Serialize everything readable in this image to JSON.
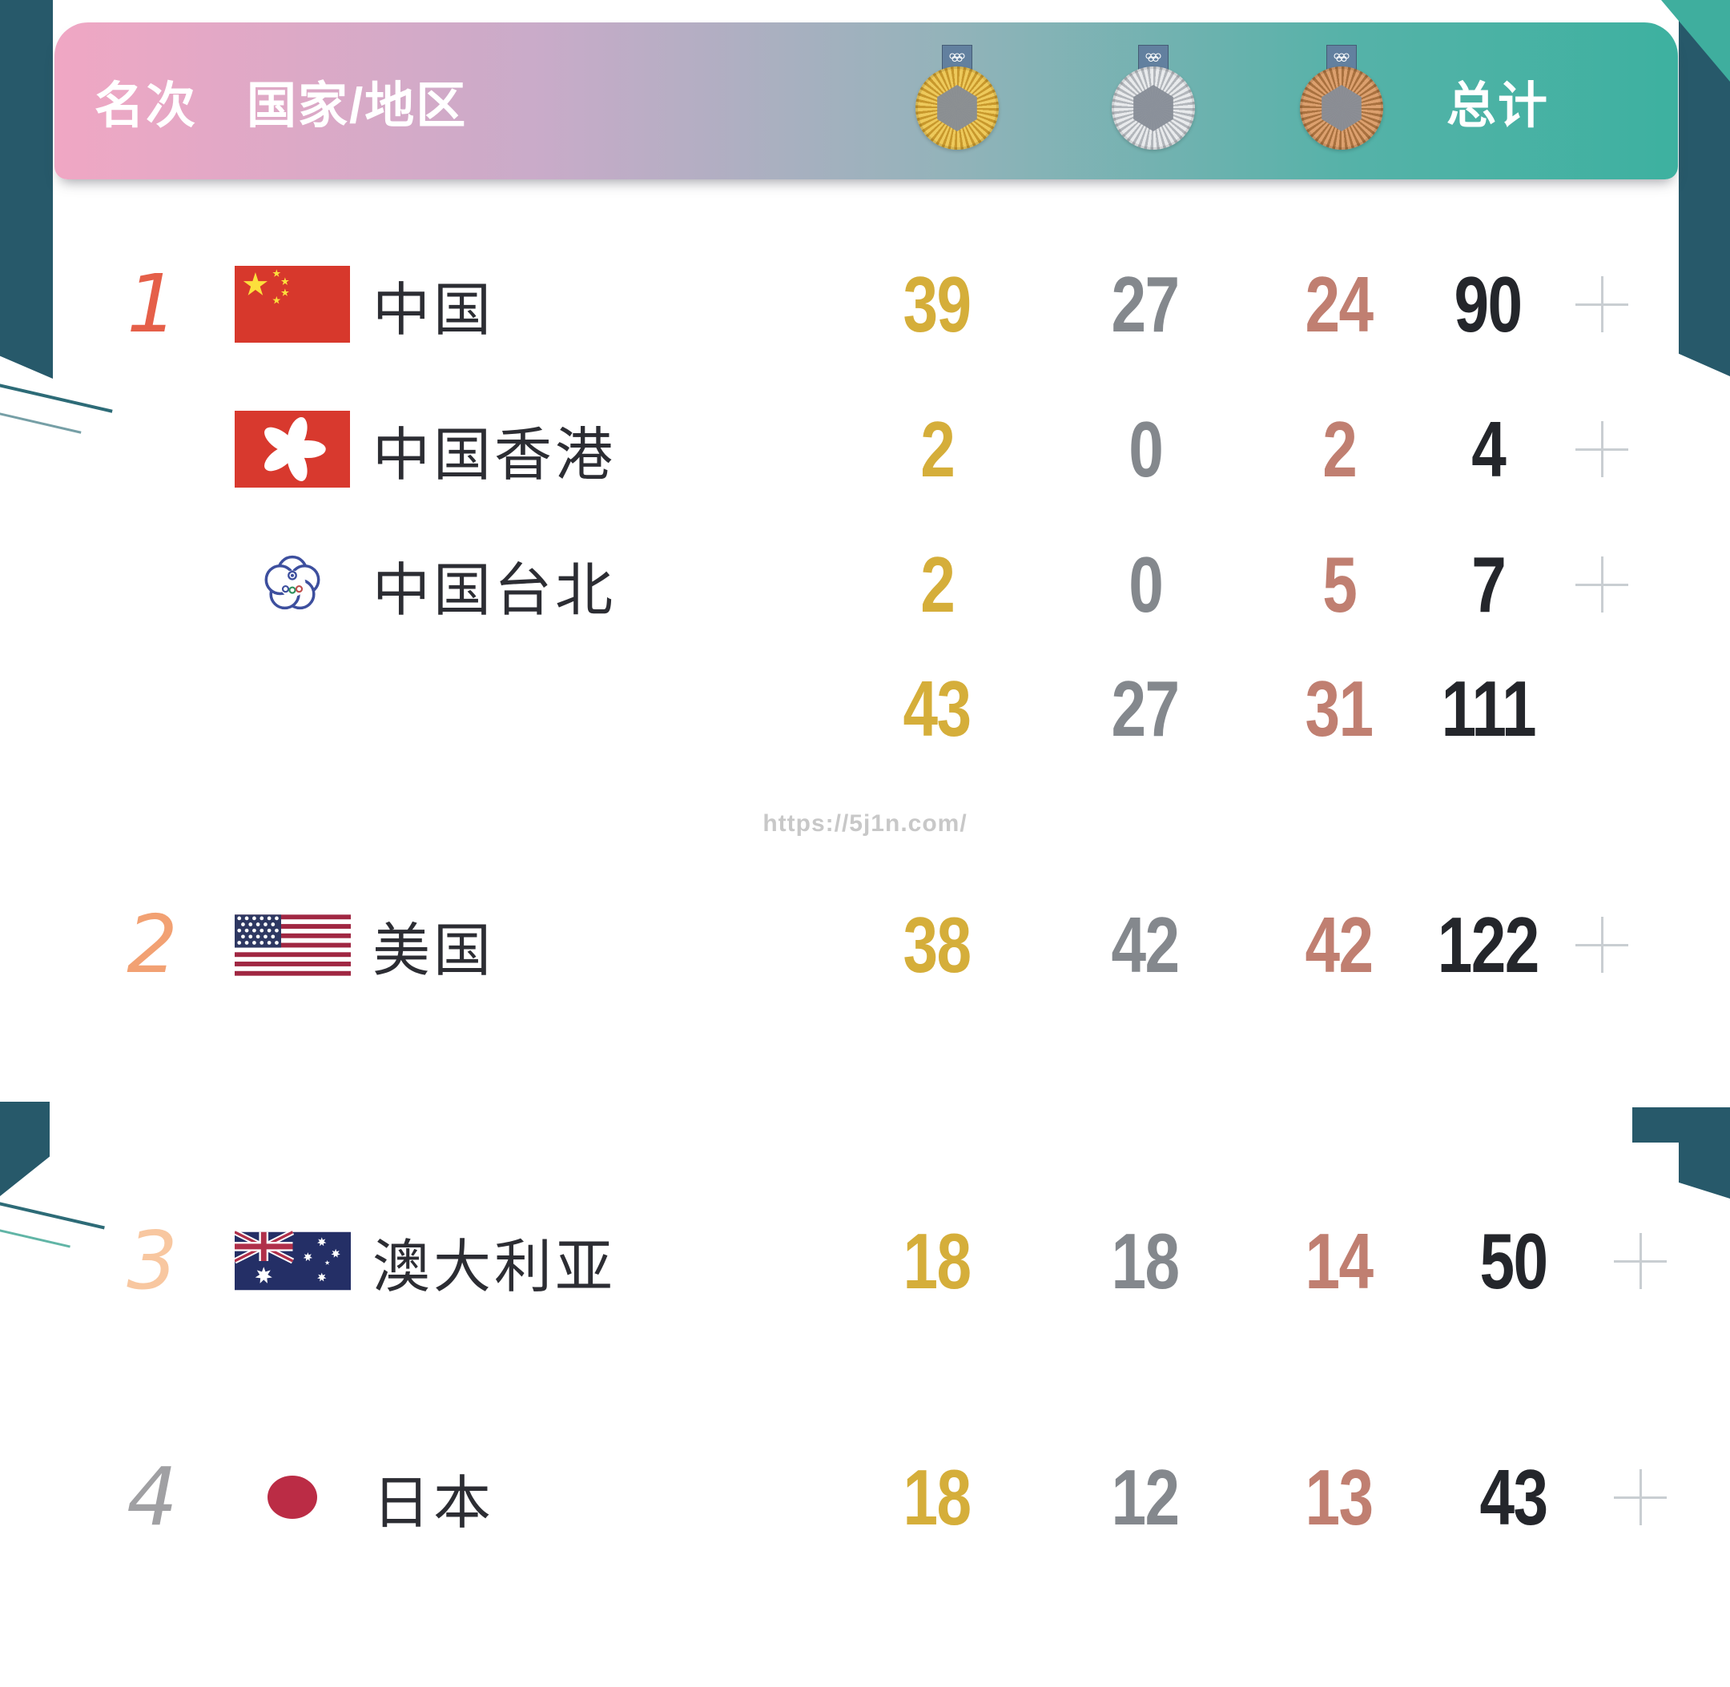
{
  "header": {
    "rank_label": "名次",
    "country_label": "国家/地区",
    "total_label": "总计",
    "medal_icons": [
      "gold-medal-icon",
      "silver-medal-icon",
      "bronze-medal-icon"
    ]
  },
  "table": {
    "group1": {
      "rows": [
        {
          "rank": "1",
          "country": "中国",
          "flag": "china-flag",
          "gold": "39",
          "silver": "27",
          "bronze": "24",
          "total": "90",
          "more_icon": "plus-icon"
        },
        {
          "rank": "",
          "country": "中国香港",
          "flag": "hong-kong-flag",
          "gold": "2",
          "silver": "0",
          "bronze": "2",
          "total": "4",
          "more_icon": "plus-icon"
        },
        {
          "rank": "",
          "country": "中国台北",
          "flag": "chinese-taipei-emblem",
          "gold": "2",
          "silver": "0",
          "bronze": "5",
          "total": "7",
          "more_icon": "plus-icon"
        }
      ],
      "subtotal": {
        "gold": "43",
        "silver": "27",
        "bronze": "31",
        "total": "111"
      }
    },
    "group2": {
      "rows": [
        {
          "rank": "2",
          "country": "美国",
          "flag": "usa-flag",
          "gold": "38",
          "silver": "42",
          "bronze": "42",
          "total": "122",
          "more_icon": "plus-icon"
        },
        {
          "rank": "3",
          "country": "澳大利亚",
          "flag": "australia-flag",
          "gold": "18",
          "silver": "18",
          "bronze": "14",
          "total": "50",
          "more_icon": "plus-icon"
        },
        {
          "rank": "4",
          "country": "日本",
          "flag": "japan-flag",
          "gold": "18",
          "silver": "12",
          "bronze": "13",
          "total": "43",
          "more_icon": "plus-icon"
        }
      ]
    }
  },
  "watermark": {
    "text": "https://5j1n.com/"
  },
  "colors": {
    "gold_number": "#d5ae3a",
    "silver_number": "#84888d",
    "bronze_number": "#c07f71",
    "total_number": "#24262b",
    "rank1": "#e55f49",
    "rank2": "#f2a173",
    "rank3": "#f8c7a0",
    "rank4": "#a0a0a3",
    "deco_teal": "#27596a",
    "corner_teal": "#3fae9e",
    "header_gradient_start": "#f0a7c4",
    "header_gradient_mid": "#93b3ba",
    "header_gradient_end": "#3db1a0",
    "plus_icon": "#c9ced2"
  }
}
